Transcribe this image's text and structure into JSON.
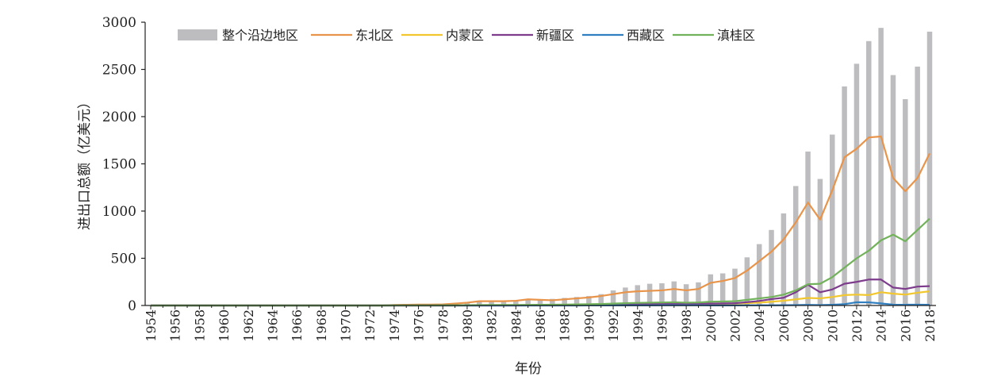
{
  "chart_data": {
    "type": "bar+line",
    "xlabel": "年份",
    "ylabel": "进出口总额（亿美元）",
    "ylim": [
      0,
      3000
    ],
    "yticks": [
      0,
      500,
      1000,
      1500,
      2000,
      2500,
      3000
    ],
    "grid": false,
    "legend_position": "top-left",
    "years": [
      1954,
      1955,
      1956,
      1957,
      1958,
      1959,
      1960,
      1961,
      1962,
      1963,
      1964,
      1965,
      1966,
      1967,
      1968,
      1969,
      1970,
      1971,
      1972,
      1973,
      1974,
      1975,
      1976,
      1977,
      1978,
      1979,
      1980,
      1981,
      1982,
      1983,
      1984,
      1985,
      1986,
      1987,
      1988,
      1989,
      1990,
      1991,
      1992,
      1993,
      1994,
      1995,
      1996,
      1997,
      1998,
      1999,
      2000,
      2001,
      2002,
      2003,
      2004,
      2005,
      2006,
      2007,
      2008,
      2009,
      2010,
      2011,
      2012,
      2013,
      2014,
      2015,
      2016,
      2017,
      2018
    ],
    "xtick_labels": [
      "1954",
      "1956",
      "1958",
      "1960",
      "1962",
      "1964",
      "1966",
      "1968",
      "1970",
      "1972",
      "1974",
      "1976",
      "1978",
      "1980",
      "1982",
      "1984",
      "1986",
      "1988",
      "1990",
      "1992",
      "1994",
      "1996",
      "1998",
      "2000",
      "2002",
      "2004",
      "2006",
      "2008",
      "2010",
      "2012",
      "2014",
      "2016",
      "2018"
    ],
    "bar_series": {
      "name": "整个沿边地区",
      "color": "#bdbdc0",
      "values": [
        0,
        0,
        0,
        0,
        0,
        0,
        0,
        0,
        0,
        0,
        0,
        0,
        0,
        0,
        0,
        0,
        0,
        0,
        0,
        0,
        5,
        8,
        8,
        10,
        12,
        20,
        30,
        45,
        45,
        45,
        48,
        60,
        65,
        70,
        80,
        90,
        100,
        120,
        160,
        190,
        215,
        230,
        235,
        255,
        225,
        245,
        330,
        340,
        390,
        510,
        650,
        800,
        975,
        1265,
        1630,
        1340,
        1810,
        2320,
        2560,
        2800,
        2940,
        2440,
        2185,
        2530,
        2900
      ]
    },
    "line_series": [
      {
        "name": "东北区",
        "color": "#e8944a",
        "values": [
          0,
          0,
          0,
          0,
          0,
          0,
          0,
          0,
          0,
          0,
          0,
          0,
          0,
          0,
          0,
          0,
          0,
          0,
          0,
          0,
          5,
          8,
          10,
          10,
          12,
          20,
          30,
          45,
          45,
          45,
          50,
          65,
          60,
          55,
          65,
          75,
          85,
          100,
          120,
          140,
          150,
          155,
          160,
          175,
          160,
          175,
          240,
          260,
          290,
          370,
          470,
          570,
          700,
          880,
          1090,
          910,
          1220,
          1570,
          1660,
          1780,
          1790,
          1350,
          1210,
          1350,
          1610
        ]
      },
      {
        "name": "内蒙区",
        "color": "#f2c72e",
        "values": [
          0,
          0,
          0,
          0,
          0,
          0,
          0,
          0,
          0,
          0,
          0,
          0,
          0,
          0,
          0,
          0,
          0,
          0,
          0,
          0,
          0,
          0,
          0,
          0,
          0,
          0,
          1,
          1,
          2,
          2,
          3,
          3,
          4,
          4,
          5,
          5,
          6,
          6,
          8,
          10,
          12,
          14,
          15,
          16,
          14,
          15,
          18,
          18,
          20,
          25,
          30,
          40,
          50,
          65,
          80,
          75,
          90,
          110,
          115,
          110,
          140,
          125,
          115,
          135,
          150
        ]
      },
      {
        "name": "新疆区",
        "color": "#7d3c8c",
        "values": [
          0,
          0,
          0,
          0,
          0,
          0,
          0,
          0,
          0,
          0,
          0,
          0,
          0,
          0,
          0,
          0,
          0,
          0,
          0,
          0,
          0,
          0,
          0,
          0,
          0,
          0,
          0,
          0,
          0,
          0,
          0,
          1,
          2,
          3,
          4,
          5,
          6,
          8,
          10,
          12,
          15,
          17,
          18,
          18,
          17,
          18,
          20,
          22,
          24,
          35,
          48,
          68,
          82,
          140,
          220,
          140,
          170,
          230,
          250,
          275,
          275,
          190,
          175,
          200,
          205
        ]
      },
      {
        "name": "西藏区",
        "color": "#2f7fc1",
        "values": [
          0,
          0,
          0,
          0,
          0,
          0,
          0,
          0,
          0,
          0,
          0,
          0,
          0,
          0,
          0,
          0,
          0,
          0,
          0,
          0,
          0,
          0,
          0,
          0,
          0,
          0,
          0,
          0,
          0,
          0,
          0,
          0,
          0,
          0,
          0,
          0,
          1,
          1,
          1,
          1,
          1,
          1,
          2,
          2,
          2,
          2,
          1,
          1,
          1,
          2,
          2,
          2,
          3,
          4,
          7,
          4,
          8,
          14,
          34,
          33,
          22,
          9,
          8,
          9,
          8
        ]
      },
      {
        "name": "滇桂区",
        "color": "#72b25b",
        "values": [
          0,
          0,
          0,
          0,
          0,
          0,
          0,
          0,
          0,
          0,
          0,
          0,
          0,
          0,
          0,
          0,
          0,
          0,
          0,
          0,
          1,
          1,
          1,
          1,
          2,
          2,
          3,
          4,
          5,
          5,
          6,
          7,
          8,
          9,
          10,
          12,
          14,
          16,
          20,
          24,
          28,
          30,
          32,
          34,
          30,
          32,
          40,
          42,
          45,
          60,
          75,
          90,
          115,
          160,
          225,
          230,
          300,
          400,
          500,
          580,
          690,
          750,
          680,
          800,
          920
        ]
      }
    ]
  }
}
